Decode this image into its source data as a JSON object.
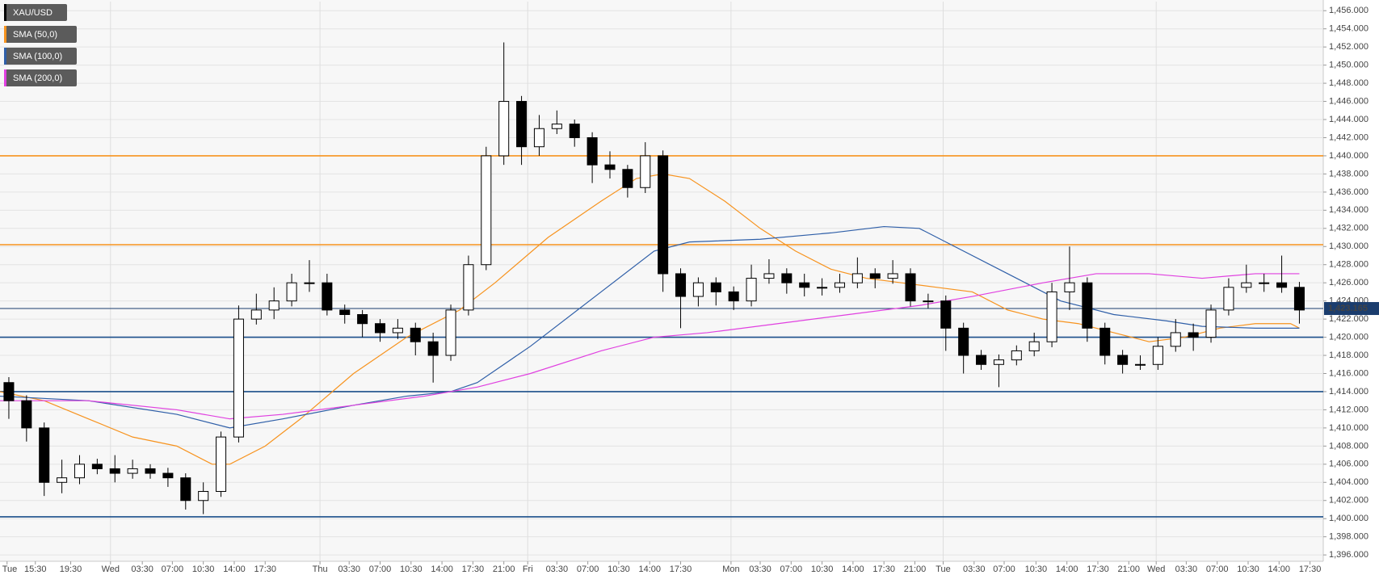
{
  "chart_data": {
    "type": "candlestick",
    "series": [
      {
        "name": "XAU/USD",
        "color": "#000000",
        "up_color": "#ffffff",
        "x": [
          1,
          3,
          5,
          7,
          9,
          11,
          13,
          15,
          17,
          19,
          21,
          23,
          25,
          27,
          29,
          31,
          33,
          35,
          37,
          39,
          41,
          43,
          45,
          47,
          49,
          51,
          53,
          55,
          57,
          59,
          61,
          63,
          65,
          67,
          69,
          71,
          73,
          75,
          77,
          79,
          81,
          83,
          85,
          87,
          89,
          91,
          93,
          95,
          97,
          99,
          101,
          103,
          105,
          107,
          109,
          111,
          113,
          115,
          117,
          119,
          121,
          123,
          125,
          127,
          129,
          131,
          133,
          135,
          137,
          139,
          141,
          143,
          145,
          147
        ],
        "open": [
          1415,
          1413,
          1410,
          1404,
          1404.5,
          1406,
          1405.5,
          1405,
          1405.5,
          1405,
          1404.5,
          1402,
          1403,
          1409,
          1422,
          1423,
          1424,
          1426,
          1426,
          1423,
          1422.5,
          1421.5,
          1420.5,
          1421,
          1419.5,
          1418,
          1423,
          1428,
          1440,
          1446,
          1441,
          1443,
          1443.5,
          1442,
          1439,
          1438.5,
          1436.5,
          1440,
          1427,
          1424.5,
          1426,
          1425,
          1424,
          1426.5,
          1427,
          1426,
          1425.5,
          1425.5,
          1426,
          1427,
          1426.5,
          1427,
          1424,
          1424,
          1421,
          1418,
          1417,
          1417.5,
          1418.5,
          1419.5,
          1425,
          1426,
          1421,
          1418,
          1417,
          1417,
          1419,
          1420.5,
          1420,
          1423,
          1425.5,
          1426,
          1426,
          1425.5
        ],
        "high": [
          1415.6,
          1413.6,
          1410.6,
          1406.5,
          1407,
          1406.6,
          1407,
          1406.5,
          1406,
          1405.6,
          1405,
          1404,
          1409.6,
          1423.5,
          1424.8,
          1425.5,
          1427,
          1428.5,
          1427,
          1423.6,
          1423,
          1422,
          1422,
          1421.6,
          1420.5,
          1423.6,
          1429,
          1441,
          1452.5,
          1446.6,
          1444.5,
          1445,
          1444,
          1442.6,
          1440.5,
          1439,
          1441.5,
          1440.6,
          1427.6,
          1426.6,
          1426.6,
          1425.6,
          1428,
          1428.6,
          1427.6,
          1427,
          1426.5,
          1427,
          1428.8,
          1427.6,
          1428.5,
          1427.6,
          1424.8,
          1424.6,
          1421.6,
          1418.6,
          1418.1,
          1419.1,
          1420.5,
          1426,
          1430,
          1426.6,
          1421.6,
          1418.6,
          1418,
          1420,
          1422,
          1421.5,
          1423.6,
          1426.5,
          1428,
          1427,
          1429,
          1426.1
        ],
        "low": [
          1411,
          1408.5,
          1402.5,
          1402.8,
          1403.8,
          1404.9,
          1404,
          1404.4,
          1404.4,
          1403.5,
          1401,
          1400.5,
          1402.4,
          1408.4,
          1421.4,
          1422,
          1423.4,
          1425,
          1422.4,
          1421.5,
          1420,
          1419.5,
          1419.8,
          1418,
          1415,
          1417.4,
          1422.4,
          1427.4,
          1439,
          1439,
          1440,
          1442.4,
          1441,
          1437,
          1437.5,
          1435.4,
          1435.9,
          1425,
          1421,
          1423.4,
          1423.5,
          1423,
          1423.4,
          1425.9,
          1424.8,
          1424.5,
          1424.6,
          1424.9,
          1425.4,
          1425.4,
          1425.9,
          1423.4,
          1423.2,
          1418.5,
          1416,
          1416.4,
          1414.5,
          1416.9,
          1417.9,
          1418.9,
          1423,
          1419.5,
          1417,
          1416,
          1416.4,
          1416.4,
          1418.4,
          1418.5,
          1419.4,
          1422.4,
          1424.9,
          1425,
          1424.9,
          1421.5
        ],
        "close": [
          1413,
          1410,
          1404,
          1404.5,
          1406,
          1405.5,
          1405,
          1405.5,
          1405,
          1404.5,
          1402,
          1403,
          1409,
          1422,
          1423,
          1424,
          1426,
          1426,
          1423,
          1422.5,
          1421.5,
          1420.5,
          1421,
          1419.5,
          1418,
          1423,
          1428,
          1440,
          1446,
          1441,
          1443,
          1443.5,
          1442,
          1439,
          1438.5,
          1436.5,
          1440,
          1427,
          1424.5,
          1426,
          1425,
          1424,
          1426.5,
          1427,
          1426,
          1425.5,
          1425.5,
          1426,
          1427,
          1426.5,
          1427,
          1424,
          1424,
          1421,
          1418,
          1417,
          1417.5,
          1418.5,
          1419.5,
          1425,
          1426,
          1421,
          1418,
          1417,
          1417,
          1419,
          1420.5,
          1420,
          1423,
          1425.5,
          1426,
          1426,
          1425.5,
          1423
        ]
      }
    ],
    "indicators": [
      {
        "name": "SMA (50,0)",
        "color": "#f7931e",
        "x": [
          0,
          5,
          10,
          15,
          20,
          24,
          26,
          30,
          34,
          40,
          46,
          52,
          56,
          62,
          68,
          72,
          75,
          78,
          82,
          86,
          90,
          94,
          98,
          102,
          106,
          110,
          114,
          118,
          122,
          126,
          130,
          134,
          138,
          142,
          146,
          147
        ],
        "values": [
          1414,
          1413,
          1411,
          1409,
          1408,
          1406,
          1406,
          1408,
          1411,
          1416,
          1420,
          1423,
          1426,
          1431,
          1435,
          1437.5,
          1438,
          1437.5,
          1435,
          1432,
          1429.5,
          1427.5,
          1426.5,
          1426,
          1425.5,
          1425,
          1423,
          1422,
          1421.5,
          1420.5,
          1419.5,
          1420,
          1421,
          1421.5,
          1421.5,
          1421
        ]
      },
      {
        "name": "SMA (100,0)",
        "color": "#2f5fa8",
        "x": [
          0,
          10,
          20,
          26,
          32,
          40,
          46,
          51,
          54,
          60,
          68,
          74,
          78,
          86,
          94,
          100,
          104,
          108,
          114,
          120,
          126,
          132,
          136,
          142,
          147
        ],
        "values": [
          1413.5,
          1413,
          1411.5,
          1410,
          1411,
          1412.5,
          1413.5,
          1414,
          1415,
          1419,
          1425,
          1429.5,
          1430.5,
          1430.8,
          1431.5,
          1432.2,
          1432,
          1430,
          1427,
          1424,
          1422.5,
          1421.8,
          1421.2,
          1421,
          1421
        ]
      },
      {
        "name": "SMA (200,0)",
        "color": "#e040e0",
        "x": [
          0,
          10,
          20,
          26,
          32,
          40,
          48,
          54,
          60,
          68,
          74,
          80,
          88,
          96,
          104,
          110,
          118,
          124,
          130,
          136,
          142,
          147
        ],
        "values": [
          1413,
          1413,
          1412,
          1411,
          1411.5,
          1412.5,
          1413.5,
          1414.5,
          1416,
          1418.5,
          1420,
          1420.5,
          1421.5,
          1422.5,
          1423.5,
          1424.5,
          1426,
          1427,
          1427,
          1426.5,
          1427,
          1427
        ]
      }
    ],
    "levels": [
      {
        "value": 1440,
        "color": "#f7931e"
      },
      {
        "value": 1430.2,
        "color": "#f7931e"
      },
      {
        "value": 1420,
        "color": "#1b4f8a"
      },
      {
        "value": 1414,
        "color": "#1b4f8a"
      },
      {
        "value": 1400.2,
        "color": "#1b4f8a"
      }
    ],
    "last_price": {
      "value": 1423.165,
      "label": "1,423.165",
      "color": "#1b3d6e"
    },
    "xlim": [
      0,
      149.7
    ],
    "ylim": [
      1395.3,
      1457
    ],
    "x_separators": [
      12.5,
      36.2,
      59.7,
      82.7,
      106.7,
      130.8
    ],
    "grid": true,
    "xticks": [
      {
        "value": 0.8,
        "label": "Tue"
      },
      {
        "value": 4,
        "label": "15:30"
      },
      {
        "value": 8,
        "label": "19:30"
      },
      {
        "value": 12.5,
        "label": "Wed"
      },
      {
        "value": 16.1,
        "label": "03:30"
      },
      {
        "value": 19.5,
        "label": "07:00"
      },
      {
        "value": 23,
        "label": "10:30"
      },
      {
        "value": 26.5,
        "label": "14:00"
      },
      {
        "value": 30,
        "label": "17:30"
      },
      {
        "value": 36.2,
        "label": "Thu"
      },
      {
        "value": 39.5,
        "label": "03:30"
      },
      {
        "value": 43,
        "label": "07:00"
      },
      {
        "value": 46.5,
        "label": "10:30"
      },
      {
        "value": 50,
        "label": "14:00"
      },
      {
        "value": 53.5,
        "label": "17:30"
      },
      {
        "value": 57,
        "label": "21:00"
      },
      {
        "value": 59.7,
        "label": "Fri"
      },
      {
        "value": 63,
        "label": "03:30"
      },
      {
        "value": 66.5,
        "label": "07:00"
      },
      {
        "value": 70,
        "label": "10:30"
      },
      {
        "value": 73.5,
        "label": "14:00"
      },
      {
        "value": 77,
        "label": "17:30"
      },
      {
        "value": 82.7,
        "label": "Mon"
      },
      {
        "value": 86,
        "label": "03:30"
      },
      {
        "value": 89.5,
        "label": "07:00"
      },
      {
        "value": 93,
        "label": "10:30"
      },
      {
        "value": 96.5,
        "label": "14:00"
      },
      {
        "value": 100,
        "label": "17:30"
      },
      {
        "value": 103.5,
        "label": "21:00"
      },
      {
        "value": 106.7,
        "label": "Tue"
      },
      {
        "value": 110.2,
        "label": "03:30"
      },
      {
        "value": 113.6,
        "label": "07:00"
      },
      {
        "value": 117.2,
        "label": "10:30"
      },
      {
        "value": 120.7,
        "label": "14:00"
      },
      {
        "value": 124.2,
        "label": "17:30"
      },
      {
        "value": 127.7,
        "label": "21:00"
      },
      {
        "value": 130.8,
        "label": "Wed"
      },
      {
        "value": 134.2,
        "label": "03:30"
      },
      {
        "value": 137.7,
        "label": "07:00"
      },
      {
        "value": 141.2,
        "label": "10:30"
      },
      {
        "value": 144.7,
        "label": "14:00"
      },
      {
        "value": 148.2,
        "label": "17:30"
      }
    ],
    "yticks": [
      {
        "value": 1396,
        "label": "1,396.000"
      },
      {
        "value": 1398,
        "label": "1,398.000"
      },
      {
        "value": 1400,
        "label": "1,400.000"
      },
      {
        "value": 1402,
        "label": "1,402.000"
      },
      {
        "value": 1404,
        "label": "1,404.000"
      },
      {
        "value": 1406,
        "label": "1,406.000"
      },
      {
        "value": 1408,
        "label": "1,408.000"
      },
      {
        "value": 1410,
        "label": "1,410.000"
      },
      {
        "value": 1412,
        "label": "1,412.000"
      },
      {
        "value": 1414,
        "label": "1,414.000"
      },
      {
        "value": 1416,
        "label": "1,416.000"
      },
      {
        "value": 1418,
        "label": "1,418.000"
      },
      {
        "value": 1420,
        "label": "1,420.000"
      },
      {
        "value": 1422,
        "label": "1,422.000"
      },
      {
        "value": 1424,
        "label": "1,424.000"
      },
      {
        "value": 1426,
        "label": "1,426.000"
      },
      {
        "value": 1428,
        "label": "1,428.000"
      },
      {
        "value": 1430,
        "label": "1,430.000"
      },
      {
        "value": 1432,
        "label": "1,432.000"
      },
      {
        "value": 1434,
        "label": "1,434.000"
      },
      {
        "value": 1436,
        "label": "1,436.000"
      },
      {
        "value": 1438,
        "label": "1,438.000"
      },
      {
        "value": 1440,
        "label": "1,440.000"
      },
      {
        "value": 1442,
        "label": "1,442.000"
      },
      {
        "value": 1444,
        "label": "1,444.000"
      },
      {
        "value": 1446,
        "label": "1,446.000"
      },
      {
        "value": 1448,
        "label": "1,448.000"
      },
      {
        "value": 1450,
        "label": "1,450.000"
      },
      {
        "value": 1452,
        "label": "1,452.000"
      },
      {
        "value": 1454,
        "label": "1,454.000"
      },
      {
        "value": 1456,
        "label": "1,456.000"
      }
    ]
  }
}
